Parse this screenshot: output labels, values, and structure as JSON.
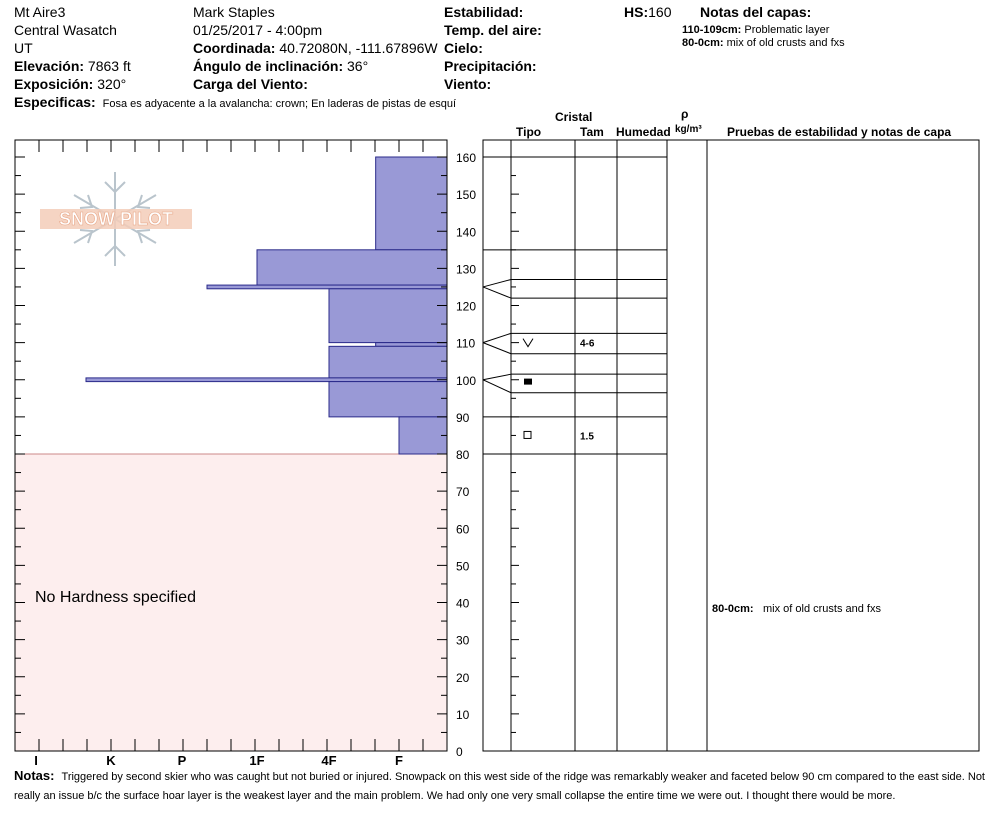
{
  "header": {
    "location": "Mt Aire3",
    "range": "Central Wasatch",
    "state": "UT",
    "observer": "Mark Staples",
    "datetime": "01/25/2017 - 4:00pm",
    "elevation_label": "Elevación:",
    "elevation_value": "7863 ft",
    "exposure_label": "Exposición:",
    "exposure_value": "320°",
    "coord_label": "Coordinada:",
    "coord_value": "40.72080N, -111.67896W",
    "slope_label": "Ángulo de inclinación:",
    "slope_value": "36°",
    "wind_load_label": "Carga del Viento:",
    "stability_label": "Estabilidad:",
    "air_temp_label": "Temp. del aire:",
    "sky_label": "Cielo:",
    "precip_label": "Precipitación:",
    "wind_label": "Viento:",
    "hs_label": "HS:",
    "hs_value": "160",
    "layer_notes_title": "Notas del capas:",
    "layer_notes": [
      {
        "range": "110-109cm:",
        "text": "Problematic layer"
      },
      {
        "range": "80-0cm:",
        "text": "mix of old crusts and fxs"
      }
    ],
    "specifics_label": "Especificas:",
    "specifics_value": "Fosa es adyacente a la avalancha: crown;  En laderas de pistas de esquí"
  },
  "columns": {
    "cristal": "Cristal",
    "tipo": "Tipo",
    "tam": "Tam",
    "humedad": "Humedad",
    "rho": "ρ",
    "density_unit": "kg/m³",
    "tests": "Pruebas de estabilidad y notas de capa"
  },
  "logo_text": "SNOW PILOT",
  "no_hardness_text": "No Hardness specified",
  "right_note": {
    "range": "80-0cm:",
    "text": "mix of old crusts and fxs"
  },
  "notes": {
    "label": "Notas:",
    "text": "Triggered by second skier who was caught but not buried or injured. Snowpack on this west side of the ridge was remarkably weaker and faceted below 90 cm compared to the east side. Not really an issue b/c the surface hoar layer is the weakest layer and the main problem. We had only one very small collapse the entire time we were out. I thought there would be more."
  },
  "chart_data": {
    "type": "bar",
    "orientation": "horizontal",
    "x_categories": [
      "I",
      "K",
      "P",
      "1F",
      "4F",
      "F"
    ],
    "y_axis_ticks": [
      0,
      10,
      20,
      30,
      40,
      50,
      60,
      70,
      80,
      90,
      100,
      110,
      120,
      130,
      140,
      150,
      160
    ],
    "ylim": [
      0,
      160
    ],
    "no_hardness_range": [
      0,
      80
    ],
    "hardness_layers": [
      {
        "top": 160,
        "bottom": 135,
        "hardness": "F+"
      },
      {
        "top": 135,
        "bottom": 125.5,
        "hardness": "1F"
      },
      {
        "top": 125.5,
        "bottom": 124.5,
        "hardness": "P-"
      },
      {
        "top": 124.5,
        "bottom": 110,
        "hardness": "4F"
      },
      {
        "top": 110,
        "bottom": 109,
        "hardness": "F+"
      },
      {
        "top": 109,
        "bottom": 100.5,
        "hardness": "4F"
      },
      {
        "top": 100.5,
        "bottom": 99.5,
        "hardness": "K+"
      },
      {
        "top": 99.5,
        "bottom": 90,
        "hardness": "4F"
      },
      {
        "top": 90,
        "bottom": 80,
        "hardness": "F"
      }
    ],
    "layer_boundaries": [
      160,
      135,
      127,
      122,
      112.5,
      107,
      101.5,
      96.5,
      90,
      80
    ],
    "grain_marks": [
      {
        "height": 110,
        "type": "v-shape",
        "size": "4-6"
      },
      {
        "height": 99.5,
        "type": "filled-square",
        "size": ""
      },
      {
        "height": 85,
        "type": "open-square",
        "size": "1.5"
      }
    ]
  }
}
